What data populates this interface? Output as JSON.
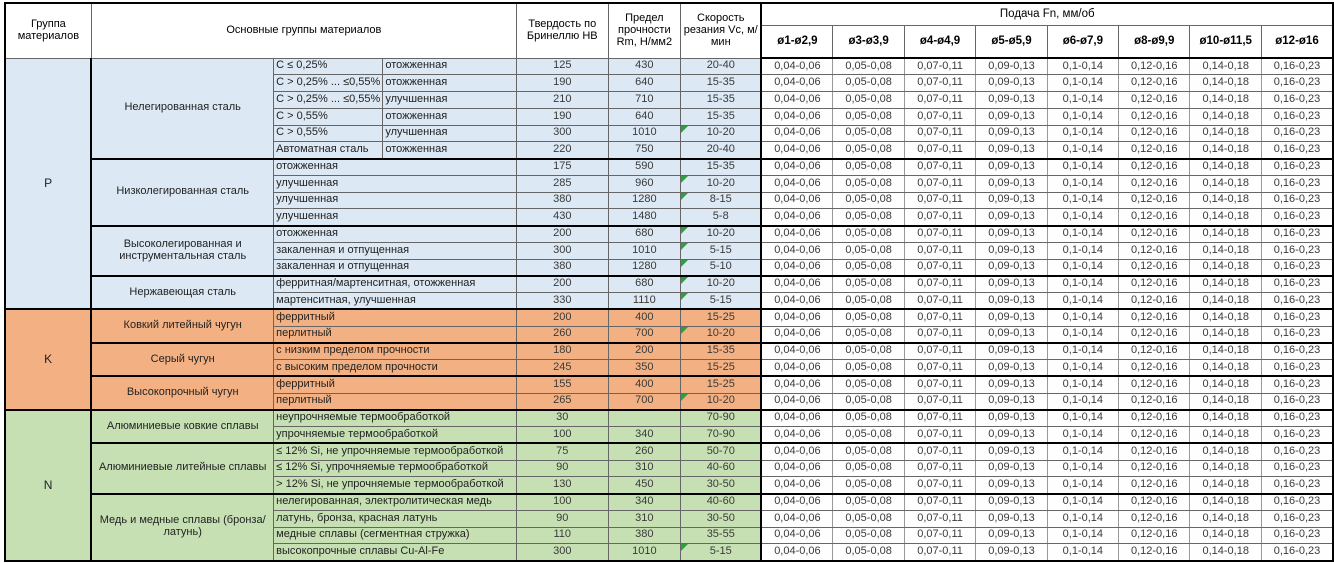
{
  "header": {
    "group": "Группа материалов",
    "materials": "Основные группы материалов",
    "hardness": "Твердость по Бринеллю НВ",
    "strength": "Предел прочности Rm, Н/мм2",
    "speed": "Скорость резания Vc, м/мин",
    "feed": "Подача Fn, мм/об",
    "feed_columns": [
      "ø1-ø2,9",
      "ø3-ø3,9",
      "ø4-ø4,9",
      "ø5-ø5,9",
      "ø6-ø7,9",
      "ø8-ø9,9",
      "ø10-ø11,5",
      "ø12-ø16"
    ]
  },
  "feed_values": [
    "0,04-0,06",
    "0,05-0,08",
    "0,07-0,11",
    "0,09-0,13",
    "0,1-0,14",
    "0,12-0,16",
    "0,14-0,18",
    "0,16-0,23"
  ],
  "colors": {
    "P": "#dce8f3",
    "K": "#f3b183",
    "N": "#c6e0b4",
    "flag": "#2e9e41",
    "border_thick": "#000000"
  },
  "groups": [
    {
      "code": "P",
      "subgroups": [
        {
          "name": "Нелегированная сталь",
          "rows": [
            {
              "spec": "C ≤ 0,25%",
              "state": "отожженная",
              "hb": "125",
              "rm": "430",
              "vc": "20-40"
            },
            {
              "spec": "C > 0,25% ... ≤0,55%",
              "state": "отожженная",
              "hb": "190",
              "rm": "640",
              "vc": "15-35"
            },
            {
              "spec": "C > 0,25% ... ≤0,55%",
              "state": "улучшенная",
              "hb": "210",
              "rm": "710",
              "vc": "15-35"
            },
            {
              "spec": "C > 0,55%",
              "state": "отожженная",
              "hb": "190",
              "rm": "640",
              "vc": "15-35"
            },
            {
              "spec": "C > 0,55%",
              "state": "улучшенная",
              "hb": "300",
              "rm": "1010",
              "vc": "10-20",
              "flag": true
            },
            {
              "spec": "Автоматная сталь",
              "state": "отожженная",
              "hb": "220",
              "rm": "750",
              "vc": "20-40"
            }
          ]
        },
        {
          "name": "Низколегированная сталь",
          "rows": [
            {
              "desc": "отожженная",
              "hb": "175",
              "rm": "590",
              "vc": "15-35"
            },
            {
              "desc": "улучшенная",
              "hb": "285",
              "rm": "960",
              "vc": "10-20",
              "flag": true
            },
            {
              "desc": "улучшенная",
              "hb": "380",
              "rm": "1280",
              "vc": "8-15",
              "flag": true
            },
            {
              "desc": "улучшенная",
              "hb": "430",
              "rm": "1480",
              "vc": "5-8"
            }
          ]
        },
        {
          "name": "Высоколегированная и инструментальная сталь",
          "rows": [
            {
              "desc": "отожженная",
              "hb": "200",
              "rm": "680",
              "vc": "10-20",
              "flag": true
            },
            {
              "desc": "закаленная и отпущенная",
              "hb": "300",
              "rm": "1010",
              "vc": "5-15",
              "flag": true
            },
            {
              "desc": "закаленная и отпущенная",
              "hb": "380",
              "rm": "1280",
              "vc": "5-10",
              "flag": true
            }
          ]
        },
        {
          "name": "Нержавеющая сталь",
          "rows": [
            {
              "desc": "ферритная/мартенситная, отожженная",
              "hb": "200",
              "rm": "680",
              "vc": "10-20",
              "flag": true
            },
            {
              "desc": "мартенситная, улучшенная",
              "hb": "330",
              "rm": "1110",
              "vc": "5-15",
              "flag": true
            }
          ]
        }
      ]
    },
    {
      "code": "K",
      "subgroups": [
        {
          "name": "Ковкий литейный чугун",
          "rows": [
            {
              "desc": "ферритный",
              "hb": "200",
              "rm": "400",
              "vc": "15-25"
            },
            {
              "desc": "перлитный",
              "hb": "260",
              "rm": "700",
              "vc": "10-20",
              "flag": true
            }
          ]
        },
        {
          "name": "Серый чугун",
          "rows": [
            {
              "desc": "с низким пределом прочности",
              "hb": "180",
              "rm": "200",
              "vc": "15-35"
            },
            {
              "desc": "с высоким пределом прочности",
              "hb": "245",
              "rm": "350",
              "vc": "15-25"
            }
          ]
        },
        {
          "name": "Высокопрочный чугун",
          "rows": [
            {
              "desc": "ферритный",
              "hb": "155",
              "rm": "400",
              "vc": "15-25"
            },
            {
              "desc": "перлитный",
              "hb": "265",
              "rm": "700",
              "vc": "10-20",
              "flag": true
            }
          ]
        }
      ]
    },
    {
      "code": "N",
      "subgroups": [
        {
          "name": "Алюминиевые ковкие сплавы",
          "rows": [
            {
              "desc": "неупрочняемые термообработкой",
              "hb": "30",
              "rm": "",
              "vc": "70-90"
            },
            {
              "desc": "упрочняемые термообработкой",
              "hb": "100",
              "rm": "340",
              "vc": "70-90"
            }
          ]
        },
        {
          "name": "Алюминиевые литейные сплавы",
          "rows": [
            {
              "desc": "≤ 12% Si, не упрочняемые термообработкой",
              "hb": "75",
              "rm": "260",
              "vc": "50-70"
            },
            {
              "desc": "≤ 12% Si, упрочняемые термообработкой",
              "hb": "90",
              "rm": "310",
              "vc": "40-60"
            },
            {
              "desc": "> 12% Si, не упрочняемые термообработкой",
              "hb": "130",
              "rm": "450",
              "vc": "30-50"
            }
          ]
        },
        {
          "name": "Медь и медные сплавы (бронза/латунь)",
          "rows": [
            {
              "desc": "нелегированная, электролитическая медь",
              "hb": "100",
              "rm": "340",
              "vc": "40-60"
            },
            {
              "desc": "латунь, бронза, красная латунь",
              "hb": "90",
              "rm": "310",
              "vc": "30-50"
            },
            {
              "desc": "медные сплавы (сегментная стружка)",
              "hb": "110",
              "rm": "380",
              "vc": "35-55"
            },
            {
              "desc": "высокопрочные сплавы Cu-Al-Fe",
              "hb": "300",
              "rm": "1010",
              "vc": "5-15",
              "flag": true
            }
          ]
        }
      ]
    }
  ]
}
